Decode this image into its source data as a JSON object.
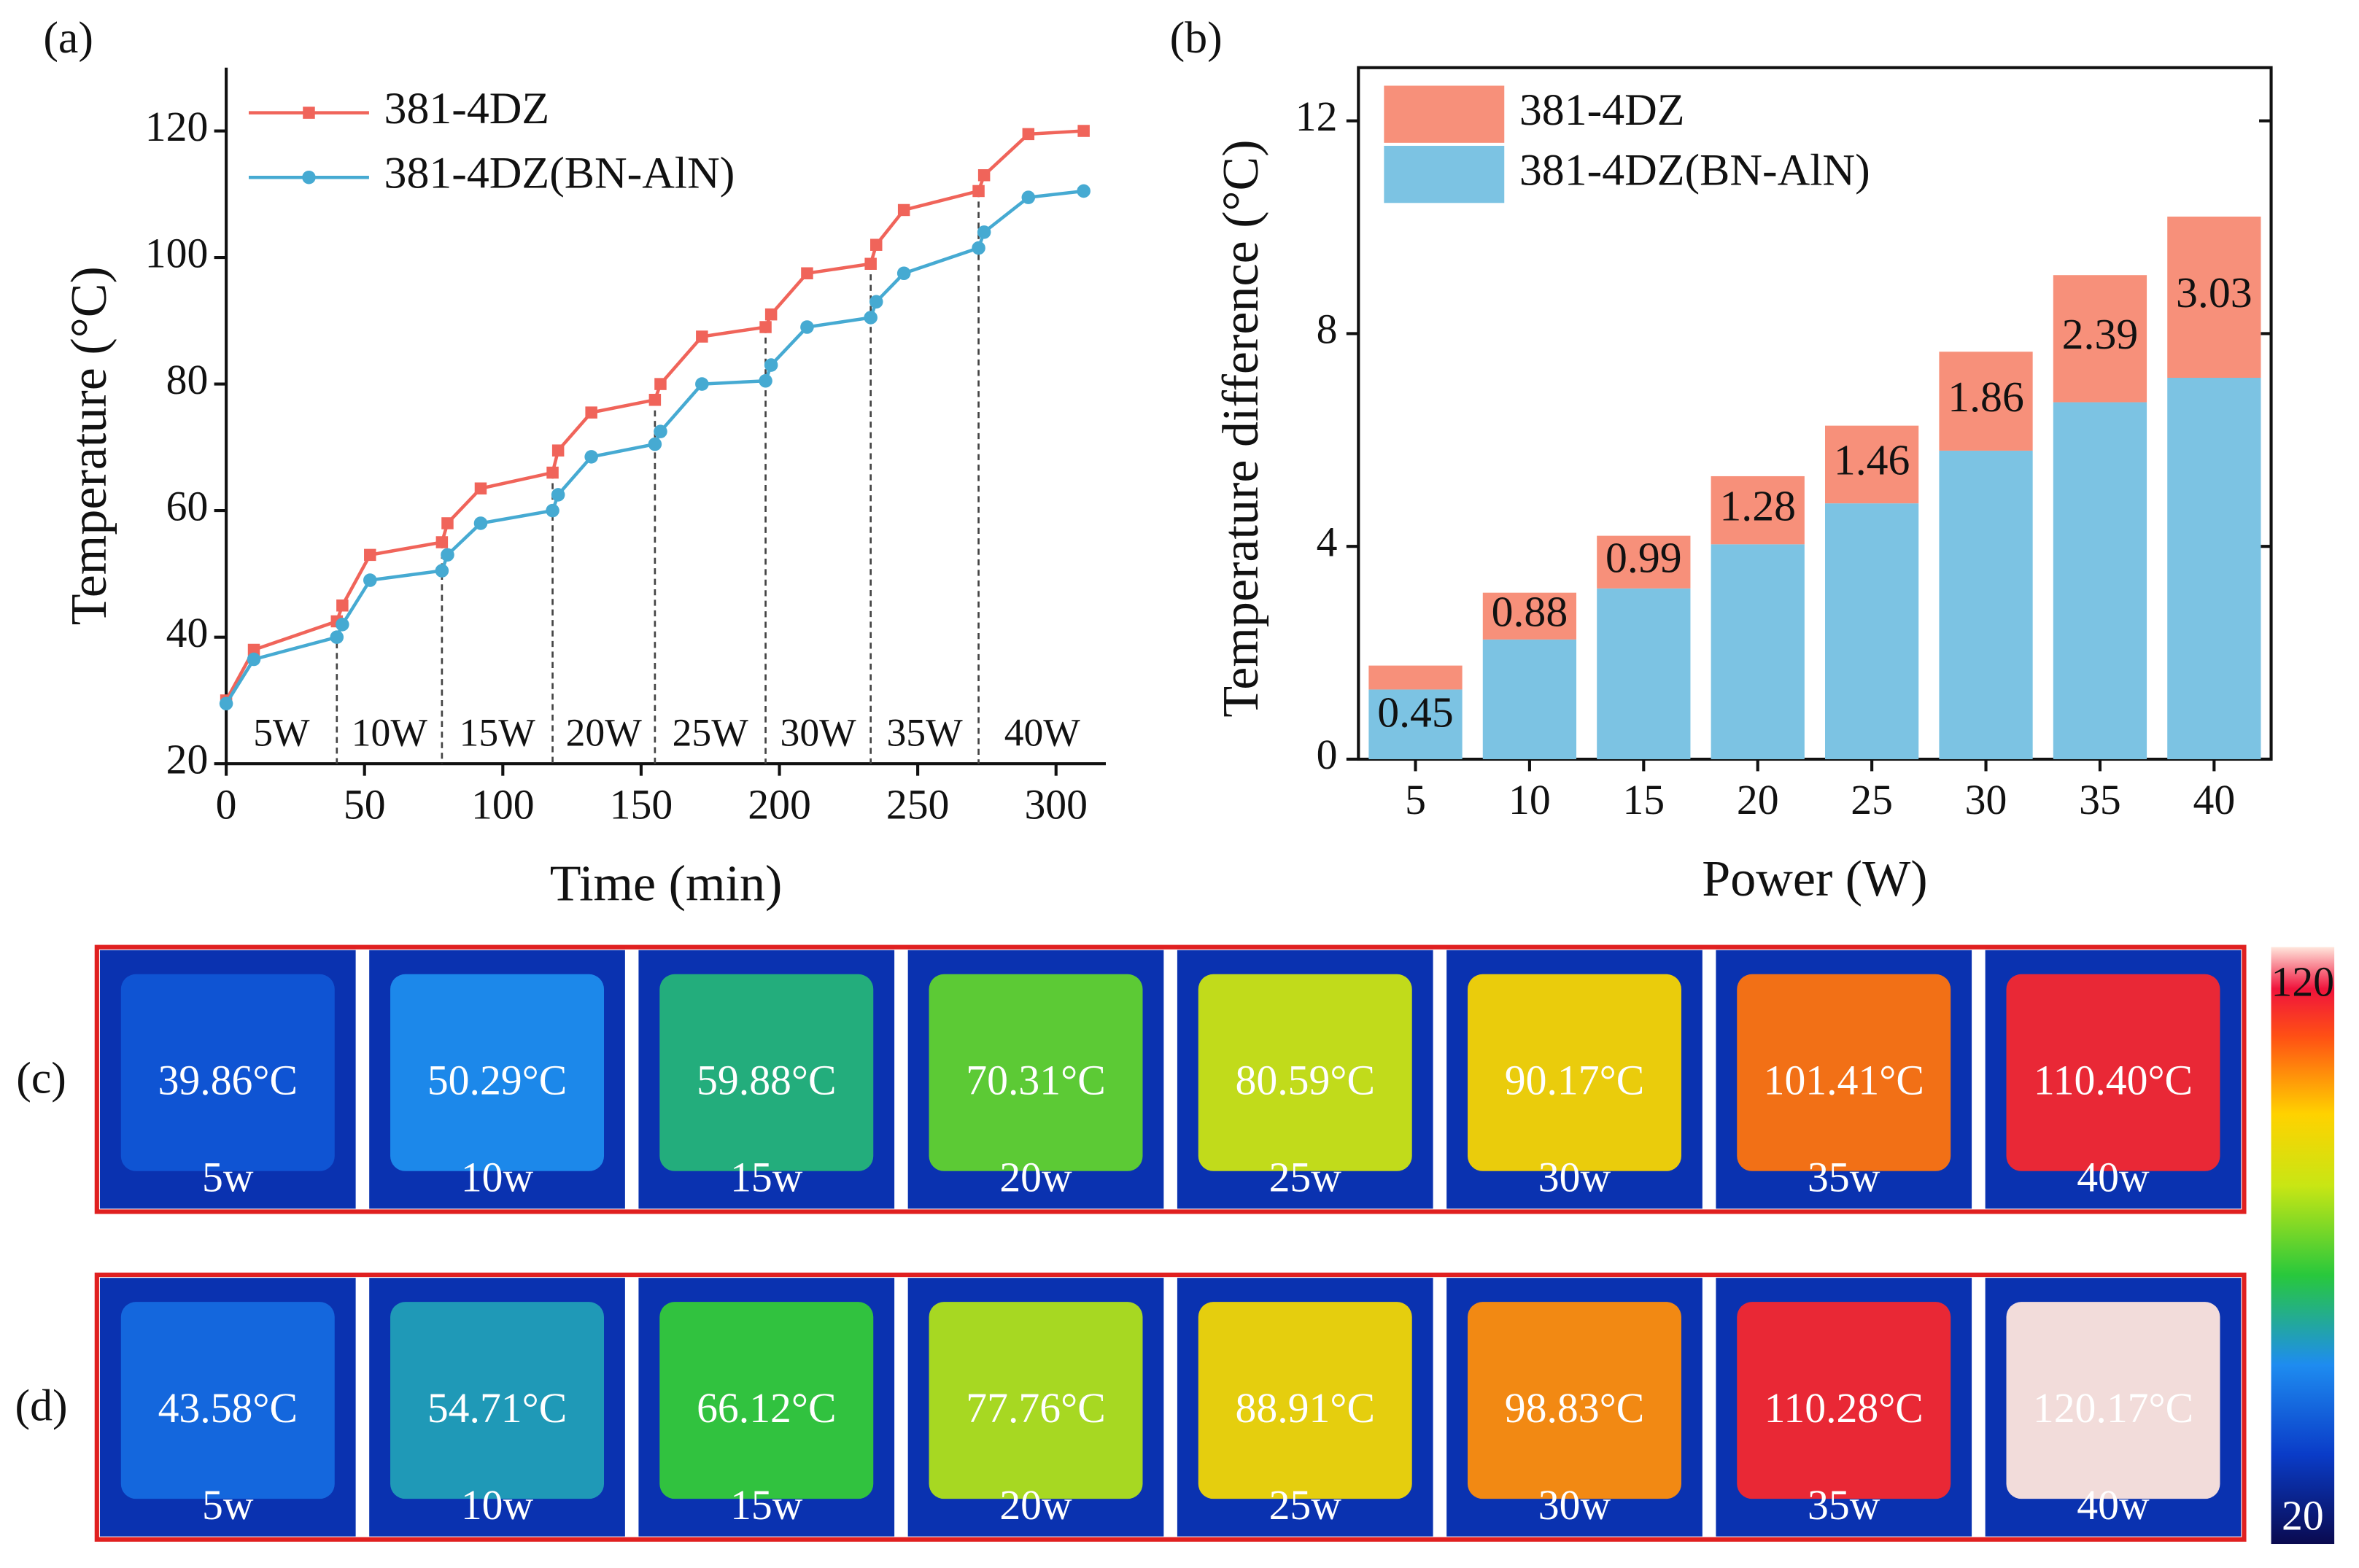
{
  "chart_data": [
    {
      "type": "line",
      "panel_label": "(a)",
      "x_label": "Time (min)",
      "y_label": "Temperature (°C)",
      "x": [
        0,
        10,
        40,
        42,
        52,
        78,
        80,
        92,
        118,
        120,
        132,
        155,
        157,
        172,
        195,
        197,
        210,
        233,
        235,
        245,
        272,
        274,
        290,
        310
      ],
      "series": [
        {
          "name": "381-4DZ",
          "color": "#f0645a",
          "marker": "square",
          "values": [
            30,
            38,
            42.5,
            45,
            53,
            55,
            58,
            63.5,
            66,
            69.5,
            75.5,
            77.5,
            80,
            87.5,
            89,
            91,
            97.5,
            99,
            102,
            107.5,
            110.5,
            113,
            119.5,
            120
          ]
        },
        {
          "name": "381-4DZ(BN-AlN)",
          "color": "#46aad2",
          "marker": "circle",
          "values": [
            29.5,
            36.5,
            40,
            42,
            49,
            50.5,
            53,
            58,
            60,
            62.5,
            68.5,
            70.5,
            72.5,
            80,
            80.5,
            83,
            89,
            90.5,
            93,
            97.5,
            101.5,
            104,
            109.5,
            110.5
          ]
        }
      ],
      "dividers": [
        40,
        78,
        118,
        155,
        195,
        233,
        272
      ],
      "annotations": [
        "5W",
        "10W",
        "15W",
        "20W",
        "25W",
        "30W",
        "35W",
        "40W"
      ],
      "xlim": [
        0,
        318
      ],
      "xticks": [
        0,
        50,
        100,
        150,
        200,
        250,
        300
      ],
      "ylim": [
        20,
        130
      ],
      "yticks": [
        20,
        40,
        60,
        80,
        100,
        120
      ],
      "legend": "upper left"
    },
    {
      "type": "stacked_bar",
      "panel_label": "(b)",
      "x_label": "Power (W)",
      "y_label": "Temperature difference (°C)",
      "categories": [
        "5",
        "10",
        "15",
        "20",
        "25",
        "30",
        "35",
        "40"
      ],
      "series": [
        {
          "name": "381-4DZ",
          "color": "#f7907a",
          "values": [
            0.45,
            0.88,
            0.99,
            1.28,
            1.46,
            1.86,
            2.39,
            3.03
          ]
        },
        {
          "name": "381-4DZ(BN-AlN)",
          "color": "#7cc3e3",
          "values": [
            1.31,
            2.25,
            3.21,
            4.04,
            4.81,
            5.8,
            6.71,
            7.17
          ]
        }
      ],
      "ylim": [
        0,
        13
      ],
      "yticks": [
        0,
        4,
        8,
        12
      ],
      "legend": "upper left"
    }
  ],
  "thermal": {
    "rows": [
      {
        "label": "(c)",
        "temps": [
          "39.86°C",
          "50.29°C",
          "59.88°C",
          "70.31°C",
          "80.59°C",
          "90.17°C",
          "101.41°C",
          "110.40°C"
        ],
        "powers": [
          "5w",
          "10w",
          "15w",
          "20w",
          "25w",
          "30w",
          "35w",
          "40w"
        ]
      },
      {
        "label": "(d)",
        "temps": [
          "43.58°C",
          "54.71°C",
          "66.12°C",
          "77.76°C",
          "88.91°C",
          "98.83°C",
          "110.28°C",
          "120.17°C"
        ],
        "powers": [
          "5w",
          "10w",
          "15w",
          "20w",
          "25w",
          "30w",
          "35w",
          "40w"
        ]
      }
    ],
    "colorbar_ticks": [
      20,
      120
    ]
  }
}
